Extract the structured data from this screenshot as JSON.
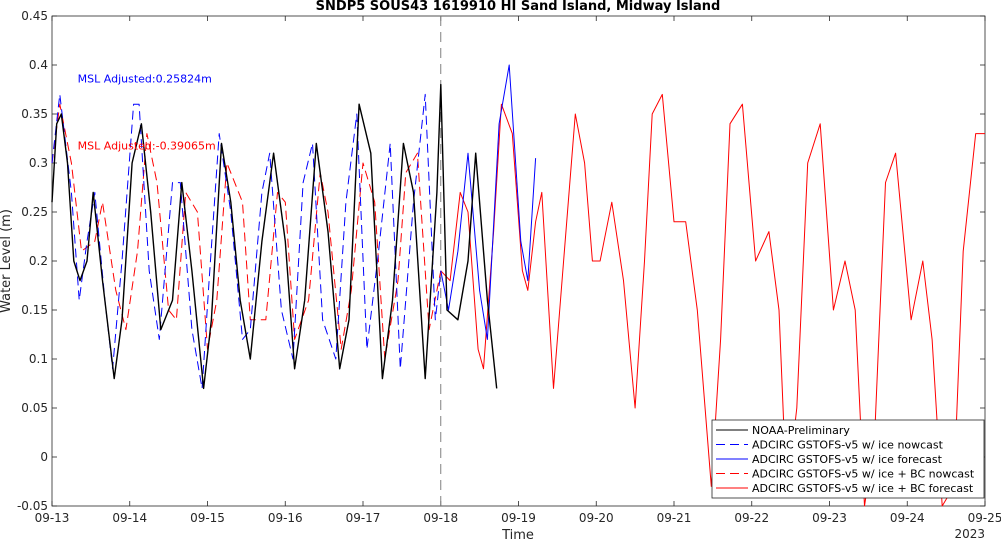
{
  "chart_data": {
    "type": "line",
    "title": "SNDP5 SOUS43 1619910 HI Sand Island, Midway Island",
    "xlabel": "Time",
    "ylabel": "Water Level (m)",
    "xlim": [
      "09-13",
      "09-25"
    ],
    "ylim": [
      -0.05,
      0.45
    ],
    "x_ticks": [
      "09-13",
      "09-14",
      "09-15",
      "09-16",
      "09-17",
      "09-18",
      "09-19",
      "09-20",
      "09-21",
      "09-22",
      "09-23",
      "09-24",
      "09-25"
    ],
    "x_year_label": "2023",
    "y_ticks": [
      -0.05,
      0,
      0.05,
      0.1,
      0.15,
      0.2,
      0.25,
      0.3,
      0.35,
      0.4,
      0.45
    ],
    "y_tick_labels": [
      "-0.05",
      "0",
      "0.05",
      "0.1",
      "0.15",
      "0.2",
      "0.25",
      "0.3",
      "0.35",
      "0.4",
      "0.45"
    ],
    "grid": false,
    "legend_position": "bottom-right",
    "nowcast_divider_day": 5,
    "annotations": [
      {
        "text": "MSL Adjusted:0.25824m",
        "color": "#0000ff",
        "day": 0.33,
        "y": 0.382
      },
      {
        "text": "MSL Adjusted:-0.39065m",
        "color": "#ff0000",
        "day": 0.33,
        "y": 0.314
      }
    ],
    "series": [
      {
        "name": "NOAA-Preliminary",
        "color": "#000000",
        "style": "solid",
        "x": [
          0,
          0.06,
          0.12,
          0.2,
          0.28,
          0.36,
          0.45,
          0.53,
          0.65,
          0.8,
          0.9,
          1.03,
          1.15,
          1.27,
          1.4,
          1.55,
          1.67,
          1.8,
          1.95,
          2.05,
          2.18,
          2.3,
          2.42,
          2.55,
          2.7,
          2.85,
          3.0,
          3.12,
          3.25,
          3.4,
          3.55,
          3.7,
          3.82,
          3.95,
          4.1,
          4.25,
          4.38,
          4.52,
          4.65,
          4.8,
          4.95,
          5.0,
          5.08,
          5.22,
          5.35,
          5.45,
          5.6,
          5.72
        ],
        "y": [
          0.26,
          0.34,
          0.35,
          0.3,
          0.2,
          0.18,
          0.2,
          0.27,
          0.18,
          0.08,
          0.14,
          0.3,
          0.34,
          0.25,
          0.13,
          0.16,
          0.28,
          0.19,
          0.07,
          0.14,
          0.32,
          0.26,
          0.16,
          0.1,
          0.22,
          0.31,
          0.22,
          0.09,
          0.16,
          0.32,
          0.23,
          0.09,
          0.14,
          0.36,
          0.31,
          0.08,
          0.16,
          0.32,
          0.27,
          0.08,
          0.27,
          0.38,
          0.15,
          0.14,
          0.2,
          0.31,
          0.16,
          0.07
        ]
      },
      {
        "name": "ADCIRC GSTOFS-v5 w/ ice nowcast",
        "color": "#0000ff",
        "style": "dashed",
        "x": [
          0,
          0.1,
          0.25,
          0.35,
          0.45,
          0.55,
          0.68,
          0.78,
          0.9,
          1.05,
          1.12,
          1.25,
          1.38,
          1.55,
          1.65,
          1.8,
          1.93,
          2.02,
          2.15,
          2.3,
          2.45,
          2.55,
          2.7,
          2.8,
          2.95,
          3.1,
          3.23,
          3.35,
          3.48,
          3.65,
          3.78,
          3.92,
          4.05,
          4.2,
          4.35,
          4.48,
          4.65,
          4.8,
          4.93,
          5.0
        ],
        "y": [
          0.3,
          0.37,
          0.27,
          0.16,
          0.22,
          0.27,
          0.16,
          0.09,
          0.2,
          0.36,
          0.36,
          0.19,
          0.12,
          0.28,
          0.28,
          0.13,
          0.07,
          0.18,
          0.33,
          0.25,
          0.12,
          0.13,
          0.27,
          0.31,
          0.15,
          0.1,
          0.28,
          0.32,
          0.14,
          0.1,
          0.26,
          0.35,
          0.11,
          0.21,
          0.32,
          0.09,
          0.26,
          0.37,
          0.14,
          0.19
        ]
      },
      {
        "name": "ADCIRC GSTOFS-v5 w/ ice forecast",
        "color": "#0000ff",
        "style": "solid",
        "x": [
          5.0,
          5.1,
          5.22,
          5.35,
          5.5,
          5.6,
          5.75,
          5.88,
          6.03,
          6.12,
          6.22
        ],
        "y": [
          0.19,
          0.15,
          0.21,
          0.31,
          0.17,
          0.12,
          0.34,
          0.4,
          0.22,
          0.18,
          0.305
        ]
      },
      {
        "name": "ADCIRC GSTOFS-v5 w/ ice + BC nowcast",
        "color": "#ff0000",
        "style": "dashed",
        "x": [
          0,
          0.1,
          0.25,
          0.38,
          0.55,
          0.65,
          0.82,
          0.95,
          1.1,
          1.22,
          1.35,
          1.5,
          1.6,
          1.72,
          1.87,
          2.0,
          2.12,
          2.25,
          2.45,
          2.55,
          2.75,
          2.9,
          3.0,
          3.12,
          3.3,
          3.45,
          3.55,
          3.72,
          3.85,
          4.0,
          4.15,
          4.28,
          4.45,
          4.55,
          4.7,
          4.85,
          5.0
        ],
        "y": [
          0.3,
          0.36,
          0.3,
          0.21,
          0.22,
          0.26,
          0.17,
          0.13,
          0.21,
          0.33,
          0.28,
          0.15,
          0.14,
          0.27,
          0.25,
          0.11,
          0.16,
          0.3,
          0.26,
          0.14,
          0.14,
          0.27,
          0.26,
          0.12,
          0.16,
          0.29,
          0.25,
          0.11,
          0.17,
          0.3,
          0.26,
          0.1,
          0.18,
          0.29,
          0.31,
          0.13,
          0.19
        ]
      },
      {
        "name": "ADCIRC GSTOFS-v5 w/ ice + BC forecast",
        "color": "#ff0000",
        "style": "solid",
        "x": [
          5.0,
          5.12,
          5.25,
          5.35,
          5.48,
          5.55,
          5.68,
          5.78,
          5.92,
          6.05,
          6.12,
          6.22,
          6.3,
          6.45,
          6.58,
          6.73,
          6.85,
          6.95,
          7.05,
          7.2,
          7.35,
          7.5,
          7.62,
          7.72,
          7.85,
          8.0,
          8.15,
          8.3,
          8.48,
          8.6,
          8.72,
          8.88,
          9.05,
          9.22,
          9.35,
          9.45,
          9.58,
          9.72,
          9.88,
          10.05,
          10.2,
          10.33,
          10.45,
          10.58,
          10.72,
          10.85,
          11.05,
          11.2,
          11.32,
          11.45,
          11.6,
          11.72,
          11.88,
          12.0
        ],
        "y": [
          0.19,
          0.18,
          0.27,
          0.25,
          0.11,
          0.09,
          0.23,
          0.36,
          0.33,
          0.19,
          0.17,
          0.24,
          0.27,
          0.07,
          0.2,
          0.35,
          0.3,
          0.2,
          0.2,
          0.26,
          0.18,
          0.05,
          0.2,
          0.35,
          0.37,
          0.24,
          0.24,
          0.15,
          -0.03,
          0.12,
          0.34,
          0.36,
          0.2,
          0.23,
          0.15,
          -0.04,
          0.05,
          0.3,
          0.34,
          0.15,
          0.2,
          0.15,
          -0.05,
          0.02,
          0.28,
          0.31,
          0.14,
          0.2,
          0.12,
          -0.05,
          -0.03,
          0.21,
          0.33,
          0.33
        ]
      }
    ]
  }
}
